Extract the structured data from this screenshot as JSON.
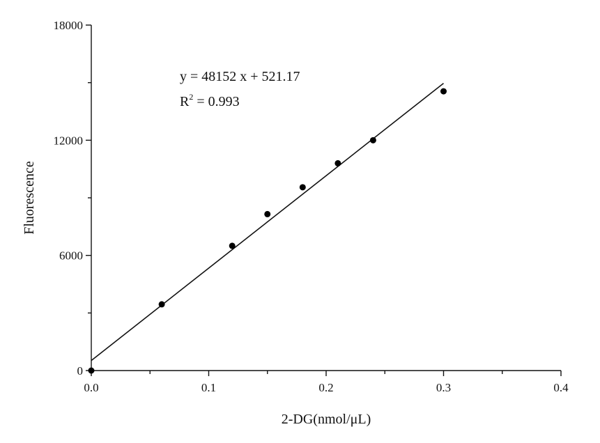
{
  "chart_data": {
    "type": "scatter",
    "xlabel": "2-DG(nmol/μL)",
    "ylabel": "Fluorescence",
    "xlim": [
      0.0,
      0.4
    ],
    "ylim": [
      0,
      18000
    ],
    "x_ticks": [
      "0.0",
      "0.1",
      "0.2",
      "0.3",
      "0.4"
    ],
    "y_ticks": [
      "0",
      "6000",
      "12000",
      "18000"
    ],
    "grid": false,
    "legend": "none",
    "series": [
      {
        "points": [
          {
            "x": 0.0,
            "y": 0
          },
          {
            "x": 0.06,
            "y": 3450
          },
          {
            "x": 0.12,
            "y": 6500
          },
          {
            "x": 0.15,
            "y": 8150
          },
          {
            "x": 0.18,
            "y": 9550
          },
          {
            "x": 0.21,
            "y": 10800
          },
          {
            "x": 0.24,
            "y": 12000
          },
          {
            "x": 0.3,
            "y": 14550
          }
        ]
      }
    ],
    "fit": {
      "slope": 48152,
      "intercept": 521.17,
      "x_range": [
        0.0,
        0.3
      ],
      "equation": "y = 48152 x + 521.17",
      "r2_prefix": "R",
      "r2_exp": "2",
      "r2_value": " = 0.993"
    }
  }
}
